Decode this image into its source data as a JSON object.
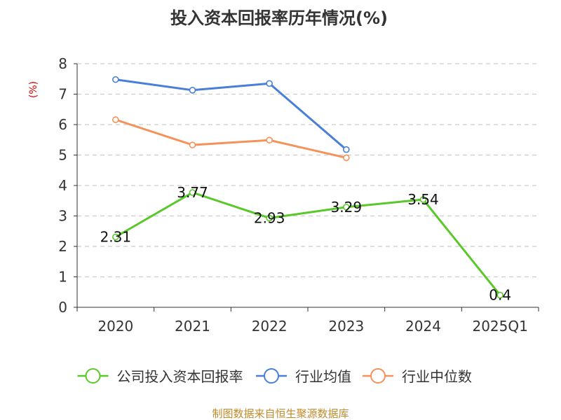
{
  "chart_data": {
    "type": "line",
    "title": "投入资本回报率历年情况(%)",
    "ylabel": "(%)",
    "categories": [
      "2020",
      "2021",
      "2022",
      "2023",
      "2024",
      "2025Q1"
    ],
    "ylim": [
      0,
      8
    ],
    "yticks": [
      0,
      1,
      2,
      3,
      4,
      5,
      6,
      7,
      8
    ],
    "grid": true,
    "legend_position": "bottom",
    "series": [
      {
        "name": "公司投入资本回报率",
        "color": "#5ac82a",
        "values": [
          2.31,
          3.77,
          2.93,
          3.29,
          3.54,
          0.4
        ],
        "labels": [
          "2.31",
          "3.77",
          "2.93",
          "3.29",
          "3.54",
          "0.4"
        ]
      },
      {
        "name": "行业均值",
        "color": "#4a7fd8",
        "values": [
          7.48,
          7.13,
          7.35,
          5.18,
          null,
          null
        ]
      },
      {
        "name": "行业中位数",
        "color": "#f4925a",
        "values": [
          6.16,
          5.33,
          5.49,
          4.91,
          null,
          null
        ]
      }
    ]
  },
  "source_text": "制图数据来自恒生聚源数据库"
}
